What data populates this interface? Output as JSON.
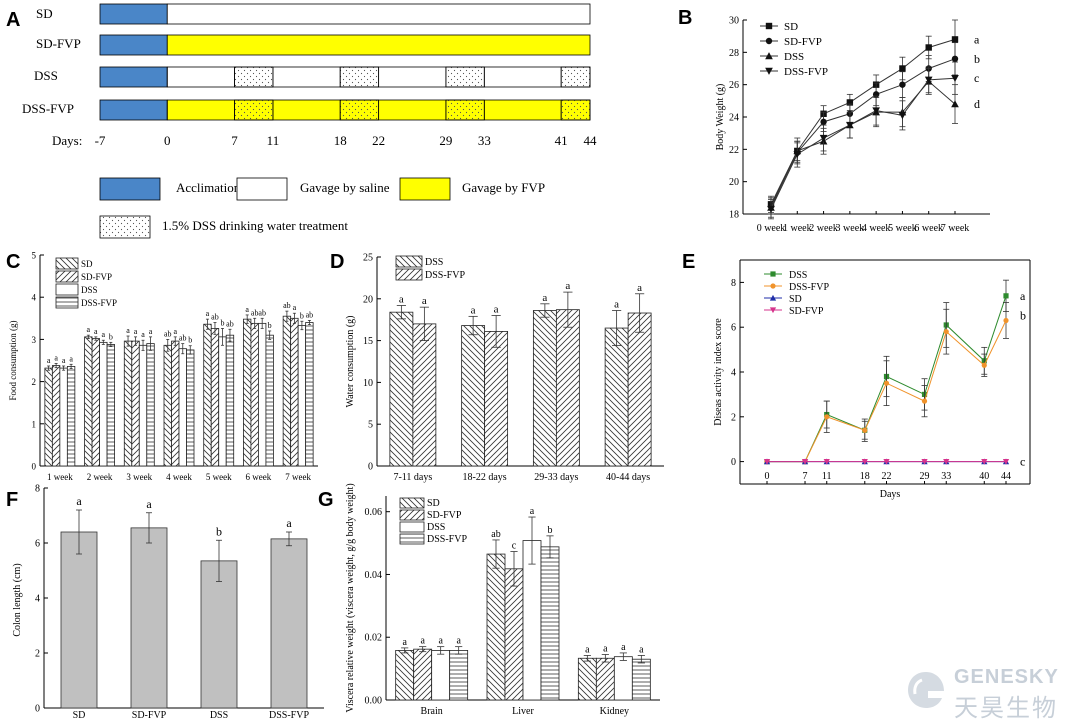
{
  "panel_letters": [
    "A",
    "B",
    "C",
    "D",
    "E",
    "F",
    "G"
  ],
  "panel_a": {
    "groups": [
      "SD",
      "SD-FVP",
      "DSS",
      "DSS-FVP"
    ],
    "days_label": "Days:",
    "days": [
      "-7",
      "0",
      "7",
      "11",
      "18",
      "22",
      "29",
      "33",
      "41",
      "44"
    ],
    "day_values": [
      -7,
      0,
      7,
      11,
      18,
      22,
      29,
      33,
      41,
      44
    ],
    "dss_windows": [
      [
        7,
        11
      ],
      [
        18,
        22
      ],
      [
        29,
        33
      ],
      [
        41,
        44
      ]
    ],
    "legend": {
      "acclimation": "Acclimation",
      "saline": "Gavage by saline",
      "fvp": "Gavage by FVP",
      "dss": "1.5% DSS drinking water treatment"
    },
    "colors": {
      "acclimation": "#4a86c8",
      "fvp": "#ffff00",
      "saline": "#ffffff"
    }
  },
  "chart_data": [
    {
      "panel": "B",
      "type": "line",
      "ylabel": "Body Weight (g)",
      "categories": [
        "0 week",
        "1 week",
        "2 week",
        "3 week",
        "4 week",
        "5 week",
        "6 week",
        "7 week"
      ],
      "ylim": [
        18,
        30
      ],
      "yticks": [
        18,
        20,
        22,
        24,
        26,
        28,
        30
      ],
      "legend": "top-left",
      "series": [
        {
          "name": "SD",
          "marker": "square",
          "values": [
            18.6,
            21.9,
            24.2,
            24.9,
            26.0,
            27.0,
            28.3,
            28.8
          ],
          "errors": [
            0.5,
            0.6,
            0.5,
            0.5,
            0.6,
            0.7,
            0.7,
            1.2
          ],
          "letter": "a"
        },
        {
          "name": "SD-FVP",
          "marker": "circle",
          "values": [
            18.5,
            21.8,
            23.7,
            24.2,
            25.4,
            26.0,
            27.0,
            27.6
          ],
          "errors": [
            0.5,
            0.6,
            0.6,
            0.6,
            0.7,
            0.8,
            0.8,
            1.0
          ],
          "letter": "b"
        },
        {
          "name": "DSS",
          "marker": "triangle-up",
          "values": [
            18.4,
            21.9,
            22.5,
            23.5,
            24.3,
            24.3,
            26.2,
            24.8
          ],
          "errors": [
            0.6,
            0.8,
            0.8,
            0.8,
            0.9,
            0.9,
            0.8,
            1.2
          ],
          "letter": "d"
        },
        {
          "name": "DSS-FVP",
          "marker": "triangle-down",
          "values": [
            18.3,
            21.7,
            22.7,
            23.5,
            24.4,
            24.1,
            26.3,
            26.4
          ],
          "errors": [
            0.6,
            0.8,
            0.8,
            0.8,
            0.9,
            0.9,
            0.8,
            1.0
          ],
          "letter": "c"
        }
      ]
    },
    {
      "panel": "C",
      "type": "bar",
      "ylabel": "Food consumption (g)",
      "categories": [
        "1 week",
        "2 week",
        "3 week",
        "4 week",
        "5 week",
        "6 week",
        "7 week"
      ],
      "ylim": [
        0,
        5
      ],
      "yticks": [
        0,
        1,
        2,
        3,
        4,
        5
      ],
      "legend": "top-left",
      "series": [
        {
          "name": "SD",
          "pattern": "diag-down",
          "values": [
            2.32,
            3.06,
            2.96,
            2.86,
            3.36,
            3.48,
            3.55
          ],
          "errors": [
            0.05,
            0.04,
            0.12,
            0.14,
            0.12,
            0.1,
            0.12
          ],
          "letters": [
            "a",
            "a",
            "a",
            "ab",
            "a",
            "a",
            "ab"
          ]
        },
        {
          "name": "SD-FVP",
          "pattern": "diag-up",
          "values": [
            2.38,
            3.02,
            2.96,
            2.96,
            3.26,
            3.38,
            3.5
          ],
          "errors": [
            0.05,
            0.04,
            0.1,
            0.1,
            0.14,
            0.12,
            0.12
          ],
          "letters": [
            "a",
            "a",
            "a",
            "a",
            "ab",
            "ab",
            "a"
          ]
        },
        {
          "name": "DSS",
          "pattern": "none",
          "values": [
            2.32,
            2.93,
            2.86,
            2.78,
            3.06,
            3.38,
            3.33
          ],
          "errors": [
            0.05,
            0.05,
            0.12,
            0.12,
            0.2,
            0.12,
            0.1
          ],
          "letters": [
            "a",
            "a",
            "a",
            "ab",
            "b",
            "ab",
            "b"
          ]
        },
        {
          "name": "DSS-FVP",
          "pattern": "horizontal",
          "values": [
            2.36,
            2.88,
            2.9,
            2.75,
            3.1,
            3.1,
            3.4
          ],
          "errors": [
            0.05,
            0.05,
            0.16,
            0.1,
            0.14,
            0.1,
            0.05
          ],
          "letters": [
            "a",
            "b",
            "a",
            "b",
            "ab",
            "b",
            "ab"
          ]
        }
      ]
    },
    {
      "panel": "D",
      "type": "bar",
      "ylabel": "Water consumption (g)",
      "categories": [
        "7-11 days",
        "18-22 days",
        "29-33 days",
        "40-44 days"
      ],
      "ylim": [
        0,
        25
      ],
      "yticks": [
        0,
        5,
        10,
        15,
        20,
        25
      ],
      "legend": "top-left",
      "series": [
        {
          "name": "DSS",
          "pattern": "diag-down",
          "values": [
            18.4,
            16.8,
            18.6,
            16.5
          ],
          "errors": [
            0.8,
            1.1,
            0.8,
            2.1
          ],
          "letters": [
            "a",
            "a",
            "a",
            "a"
          ]
        },
        {
          "name": "DSS-FVP",
          "pattern": "diag-up",
          "values": [
            17.0,
            16.1,
            18.7,
            18.3
          ],
          "errors": [
            2.0,
            1.9,
            2.1,
            2.3
          ],
          "letters": [
            "a",
            "a",
            "a",
            "a"
          ]
        }
      ]
    },
    {
      "panel": "E",
      "type": "line",
      "ylabel": "Diseas activity index score",
      "xlabel": "Days",
      "x": [
        0,
        7,
        11,
        18,
        22,
        29,
        33,
        40,
        44
      ],
      "xticks": [
        "0",
        "7",
        "11",
        "18",
        "22",
        "29",
        "33",
        "40",
        "44"
      ],
      "ylim": [
        -1,
        9
      ],
      "yticks": [
        0,
        2,
        4,
        6,
        8
      ],
      "legend": "top-left",
      "series": [
        {
          "name": "DSS",
          "color": "#2e8b2e",
          "marker": "square",
          "values": [
            0,
            0,
            2.1,
            1.4,
            3.8,
            3.0,
            6.1,
            4.5,
            7.4
          ],
          "errors": [
            0,
            0,
            0.6,
            0.4,
            0.9,
            0.7,
            1.0,
            0.6,
            0.7
          ],
          "letter": "a"
        },
        {
          "name": "DSS-FVP",
          "color": "#f0932b",
          "marker": "circle",
          "values": [
            0,
            0,
            2.0,
            1.4,
            3.5,
            2.7,
            5.8,
            4.3,
            6.3
          ],
          "errors": [
            0,
            0,
            0.7,
            0.5,
            1.0,
            0.7,
            1.0,
            0.5,
            0.8
          ],
          "letter": "b"
        },
        {
          "name": "SD",
          "color": "#1f2ea8",
          "marker": "triangle-up",
          "values": [
            0,
            0,
            0,
            0,
            0,
            0,
            0,
            0,
            0
          ],
          "errors": [
            0,
            0,
            0,
            0,
            0,
            0,
            0,
            0,
            0
          ],
          "letter": ""
        },
        {
          "name": "SD-FVP",
          "color": "#d6338c",
          "marker": "triangle-down",
          "values": [
            0,
            0,
            0,
            0,
            0,
            0,
            0,
            0,
            0
          ],
          "errors": [
            0,
            0,
            0,
            0,
            0,
            0,
            0,
            0,
            0
          ],
          "letter": "c"
        }
      ]
    },
    {
      "panel": "F",
      "type": "bar",
      "ylabel": "Colon length (cm)",
      "categories": [
        "SD",
        "SD-FVP",
        "DSS",
        "DSS-FVP"
      ],
      "ylim": [
        0,
        8
      ],
      "yticks": [
        0,
        2,
        4,
        6,
        8
      ],
      "color": "#c0c0c0",
      "values": [
        6.4,
        6.55,
        5.35,
        6.15
      ],
      "errors": [
        0.8,
        0.55,
        0.75,
        0.25
      ],
      "letters": [
        "a",
        "a",
        "b",
        "a"
      ]
    },
    {
      "panel": "G",
      "type": "bar",
      "ylabel": "Viscera relative weight (viscera weight, g/g body weight)",
      "categories": [
        "Brain",
        "Liver",
        "Kidney"
      ],
      "ylim": [
        0,
        0.065
      ],
      "yticks": [
        "0.00",
        "0.02",
        "0.04",
        "0.06"
      ],
      "ytick_values": [
        0,
        0.02,
        0.04,
        0.06
      ],
      "legend": "top-left",
      "series": [
        {
          "name": "SD",
          "pattern": "diag-down",
          "values": [
            0.0158,
            0.0465,
            0.0133
          ],
          "errors": [
            0.0008,
            0.0045,
            0.0009
          ],
          "letters": [
            "a",
            "ab",
            "a"
          ]
        },
        {
          "name": "SD-FVP",
          "pattern": "diag-up",
          "values": [
            0.0162,
            0.0418,
            0.0133
          ],
          "errors": [
            0.0008,
            0.0055,
            0.0012
          ],
          "letters": [
            "a",
            "c",
            "a"
          ]
        },
        {
          "name": "DSS",
          "pattern": "none",
          "values": [
            0.0158,
            0.0508,
            0.0138
          ],
          "errors": [
            0.0012,
            0.0075,
            0.0012
          ],
          "letters": [
            "a",
            "a",
            "a"
          ]
        },
        {
          "name": "DSS-FVP",
          "pattern": "horizontal",
          "values": [
            0.0158,
            0.0488,
            0.013
          ],
          "errors": [
            0.0012,
            0.0035,
            0.0012
          ],
          "letters": [
            "a",
            "b",
            "a"
          ]
        }
      ]
    }
  ],
  "watermark": {
    "en": "GENESKY",
    "cn": "天昊生物"
  }
}
